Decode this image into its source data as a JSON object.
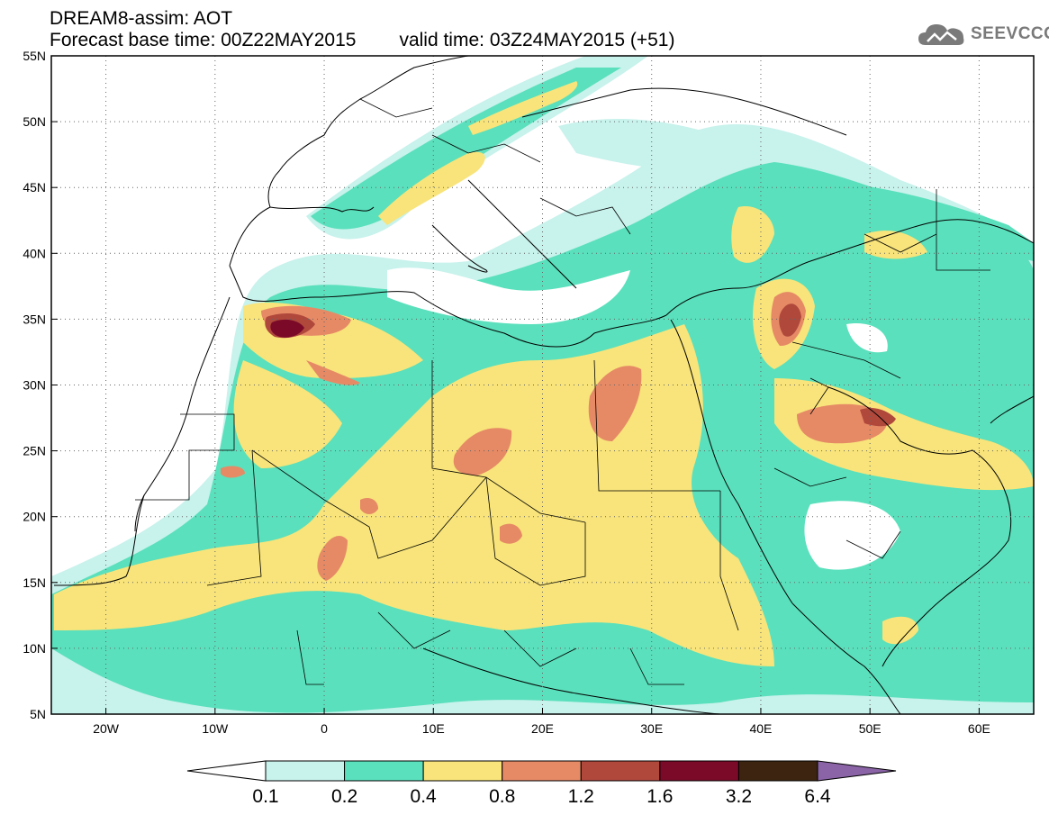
{
  "header": {
    "model_title": "DREAM8-assim: AOT",
    "base_time": "Forecast base time: 00Z22MAY2015",
    "valid_time": "valid time: 03Z24MAY2015 (+51)"
  },
  "logo": {
    "text": "SEEVCCC",
    "icon": "cloud-icon",
    "color": "#7a7a7a"
  },
  "map": {
    "lon_range": [
      -25,
      65
    ],
    "lat_range": [
      5,
      55
    ],
    "lat_ticks": [
      {
        "value": 55,
        "label": "55N"
      },
      {
        "value": 50,
        "label": "50N"
      },
      {
        "value": 45,
        "label": "45N"
      },
      {
        "value": 40,
        "label": "40N"
      },
      {
        "value": 35,
        "label": "35N"
      },
      {
        "value": 30,
        "label": "30N"
      },
      {
        "value": 25,
        "label": "25N"
      },
      {
        "value": 20,
        "label": "20N"
      },
      {
        "value": 15,
        "label": "15N"
      },
      {
        "value": 10,
        "label": "10N"
      },
      {
        "value": 5,
        "label": "5N"
      }
    ],
    "lon_ticks": [
      {
        "value": -20,
        "label": "20W"
      },
      {
        "value": -10,
        "label": "10W"
      },
      {
        "value": 0,
        "label": "0"
      },
      {
        "value": 10,
        "label": "10E"
      },
      {
        "value": 20,
        "label": "20E"
      },
      {
        "value": 30,
        "label": "30E"
      },
      {
        "value": 40,
        "label": "40E"
      },
      {
        "value": 50,
        "label": "50E"
      },
      {
        "value": 60,
        "label": "60E"
      }
    ]
  },
  "colorbar": {
    "thresholds": [
      "0.1",
      "0.2",
      "0.4",
      "0.8",
      "1.2",
      "1.6",
      "3.2",
      "6.4"
    ],
    "colors": [
      "#ffffff",
      "#c8f2ec",
      "#5ae0bc",
      "#f8e47a",
      "#e68a66",
      "#b0483c",
      "#7a0a28",
      "#3c2410",
      "#8a64a6"
    ]
  }
}
